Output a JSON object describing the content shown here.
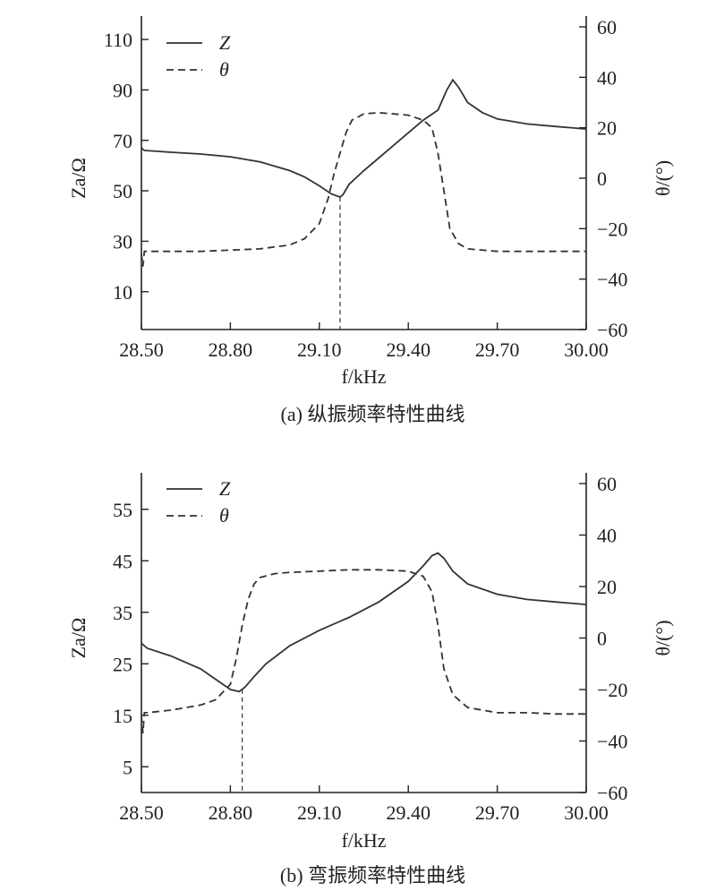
{
  "chart_data": [
    {
      "type": "line",
      "caption": "(a) 纵振频率特性曲线",
      "xlabel": "f/kHz",
      "ylabel_left": "Za/Ω",
      "ylabel_right": "θ/(°)",
      "xlim": [
        28.5,
        30.0
      ],
      "ylim_left": [
        -5,
        115
      ],
      "ylim_right": [
        -60,
        60
      ],
      "xticks": [
        "28.50",
        "28.80",
        "29.10",
        "29.40",
        "29.70",
        "30.00"
      ],
      "yticks_left": [
        "10",
        "30",
        "50",
        "70",
        "90",
        "110"
      ],
      "yticks_right": [
        "−60",
        "−40",
        "−20",
        "0",
        "20",
        "40",
        "60"
      ],
      "legend": [
        "Z",
        "θ"
      ],
      "legend_position": "top-left",
      "resonance_marker_x": 29.17,
      "series": [
        {
          "name": "Z",
          "axis": "left",
          "style": "solid",
          "x": [
            28.5,
            28.51,
            28.6,
            28.7,
            28.8,
            28.9,
            29.0,
            29.05,
            29.1,
            29.14,
            29.17,
            29.18,
            29.2,
            29.25,
            29.3,
            29.35,
            29.4,
            29.45,
            29.5,
            29.53,
            29.55,
            29.57,
            29.6,
            29.65,
            29.7,
            29.8,
            29.9,
            30.0
          ],
          "values": [
            67,
            66,
            65.3,
            64.6,
            63.5,
            61.5,
            58,
            55.5,
            52,
            48.8,
            47.5,
            48.5,
            52.5,
            58,
            63,
            68,
            73,
            78,
            82,
            90,
            94,
            91,
            85,
            81,
            78.5,
            76.5,
            75.5,
            74.5
          ]
        },
        {
          "name": "θ",
          "axis": "right",
          "style": "dashed",
          "x": [
            28.5,
            28.505,
            28.51,
            28.6,
            28.7,
            28.8,
            28.9,
            29.0,
            29.05,
            29.1,
            29.13,
            29.15,
            29.17,
            29.19,
            29.21,
            29.25,
            29.3,
            29.35,
            29.4,
            29.45,
            29.48,
            29.5,
            29.52,
            29.54,
            29.57,
            29.6,
            29.7,
            29.8,
            29.9,
            30.0
          ],
          "values": [
            -30,
            -35,
            -29,
            -29,
            -29,
            -28.5,
            -28,
            -26.5,
            -24,
            -18,
            -8,
            2,
            10,
            18,
            23,
            25.5,
            26,
            25.5,
            25,
            23,
            20,
            10,
            -5,
            -20,
            -26,
            -28,
            -29,
            -29,
            -29,
            -29
          ]
        }
      ]
    },
    {
      "type": "line",
      "caption": "(b) 弯振频率特性曲线",
      "xlabel": "f/kHz",
      "ylabel_left": "Za/Ω",
      "ylabel_right": "θ/(°)",
      "xlim": [
        28.5,
        30.0
      ],
      "ylim_left": [
        0,
        60
      ],
      "ylim_right": [
        -60,
        60
      ],
      "xticks": [
        "28.50",
        "28.80",
        "29.10",
        "29.40",
        "29.70",
        "30.00"
      ],
      "yticks_left": [
        "5",
        "15",
        "25",
        "35",
        "45",
        "55"
      ],
      "yticks_right": [
        "−60",
        "−40",
        "−20",
        "0",
        "20",
        "40",
        "60"
      ],
      "legend": [
        "Z",
        "θ"
      ],
      "legend_position": "top-left",
      "resonance_marker_x": 28.84,
      "series": [
        {
          "name": "Z",
          "axis": "left",
          "style": "solid",
          "x": [
            28.5,
            28.52,
            28.6,
            28.7,
            28.75,
            28.8,
            28.83,
            28.85,
            28.88,
            28.92,
            29.0,
            29.1,
            29.2,
            29.3,
            29.4,
            29.45,
            29.48,
            29.5,
            29.52,
            29.55,
            29.6,
            29.7,
            29.8,
            29.9,
            30.0
          ],
          "values": [
            29,
            28,
            26.5,
            24,
            22,
            20,
            19.6,
            20.5,
            22.5,
            25,
            28.5,
            31.5,
            34,
            37,
            41,
            44,
            46,
            46.5,
            45.5,
            43,
            40.5,
            38.5,
            37.5,
            37,
            36.5
          ]
        },
        {
          "name": "θ",
          "axis": "right",
          "style": "dashed",
          "x": [
            28.5,
            28.505,
            28.51,
            28.52,
            28.6,
            28.7,
            28.75,
            28.8,
            28.82,
            28.84,
            28.86,
            28.88,
            28.9,
            28.95,
            29.0,
            29.1,
            29.2,
            29.3,
            29.4,
            29.45,
            29.48,
            29.5,
            29.52,
            29.55,
            29.6,
            29.7,
            29.8,
            29.9,
            30.0
          ],
          "values": [
            -30,
            -37,
            -29,
            -29,
            -28,
            -26,
            -24,
            -18,
            -8,
            5,
            15,
            21,
            23.5,
            25,
            25.5,
            26,
            26.5,
            26.5,
            26,
            24,
            18,
            5,
            -12,
            -22,
            -27,
            -29,
            -29,
            -29.5,
            -29.5
          ]
        }
      ]
    }
  ]
}
